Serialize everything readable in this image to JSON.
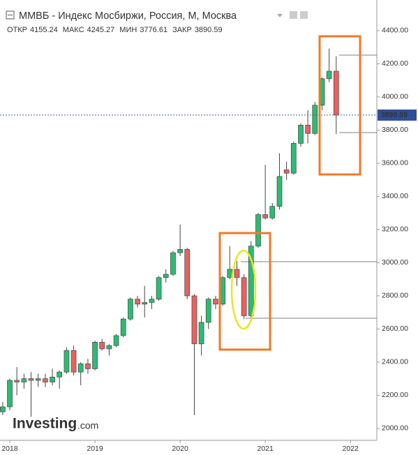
{
  "chart_data": {
    "type": "candlestick",
    "title": "ММВБ - Индекс Мосбиржи, Россия, М, Москва",
    "ohlc_labels": [
      "ОТКР",
      "МАКС",
      "МИН",
      "ЗАКР"
    ],
    "watermark": "Investing",
    "watermark_suffix": ".com",
    "up_color": "#2dbb74",
    "down_color": "#e8625f",
    "x": [
      2017.917,
      2018.0,
      2018.083,
      2018.167,
      2018.25,
      2018.333,
      2018.417,
      2018.5,
      2018.583,
      2018.667,
      2018.75,
      2018.833,
      2018.917,
      2019.0,
      2019.083,
      2019.167,
      2019.25,
      2019.333,
      2019.417,
      2019.5,
      2019.583,
      2019.667,
      2019.75,
      2019.833,
      2019.917,
      2020.0,
      2020.083,
      2020.167,
      2020.25,
      2020.333,
      2020.417,
      2020.5,
      2020.583,
      2020.667,
      2020.75,
      2020.833,
      2020.917,
      2021.0,
      2021.083,
      2021.167,
      2021.25,
      2021.333,
      2021.417,
      2021.5,
      2021.583,
      2021.667,
      2021.75,
      2021.833
    ],
    "open": [
      2100,
      2130,
      2290,
      2280,
      2300,
      2290,
      2300,
      2280,
      2310,
      2340,
      2470,
      2340,
      2390,
      2360,
      2520,
      2480,
      2500,
      2560,
      2660,
      2780,
      2750,
      2760,
      2780,
      2910,
      2930,
      3060,
      3080,
      2800,
      2510,
      2640,
      2780,
      2750,
      2910,
      2960,
      2910,
      2680,
      3100,
      3290,
      3270,
      3340,
      3560,
      3540,
      3720,
      3830,
      3780,
      3950,
      4110,
      4155.24
    ],
    "high": [
      2160,
      2300,
      2370,
      2330,
      2340,
      2330,
      2330,
      2360,
      2350,
      2490,
      2500,
      2400,
      2420,
      2530,
      2540,
      2510,
      2570,
      2670,
      2790,
      2800,
      2860,
      2800,
      2920,
      2960,
      3070,
      3230,
      3090,
      2810,
      2680,
      2790,
      2800,
      2920,
      3100,
      3010,
      2930,
      3130,
      3300,
      3590,
      3360,
      3660,
      3610,
      3730,
      3840,
      3920,
      3970,
      4120,
      4292,
      4245.27
    ],
    "low": [
      2080,
      2110,
      2200,
      2240,
      2070,
      2250,
      2250,
      2260,
      2240,
      2330,
      2320,
      2260,
      2330,
      2350,
      2470,
      2440,
      2490,
      2550,
      2650,
      2730,
      2670,
      2720,
      2770,
      2880,
      2920,
      3040,
      2780,
      2080,
      2440,
      2600,
      2720,
      2740,
      2900,
      2860,
      2660,
      2660,
      3090,
      3260,
      3260,
      3320,
      3500,
      3530,
      3700,
      3720,
      3770,
      3920,
      4090,
      3776.61
    ],
    "close": [
      2130,
      2290,
      2280,
      2300,
      2290,
      2300,
      2280,
      2310,
      2340,
      2470,
      2340,
      2390,
      2360,
      2520,
      2480,
      2500,
      2560,
      2660,
      2780,
      2750,
      2760,
      2780,
      2910,
      2930,
      3060,
      3080,
      2800,
      2510,
      2640,
      2780,
      2750,
      2910,
      2960,
      2910,
      2680,
      3100,
      3290,
      3270,
      3340,
      3520,
      3540,
      3720,
      3830,
      3780,
      3950,
      4110,
      4155.24,
      3890.59
    ],
    "xlim": [
      2017.885,
      2022.31
    ],
    "xticks": [
      2018,
      2019,
      2020,
      2021,
      2022
    ],
    "ylim": [
      1928,
      4585
    ],
    "yticks": [
      {
        "value": 2000,
        "label": "2000.00"
      },
      {
        "value": 2200,
        "label": "2200.00"
      },
      {
        "value": 2400,
        "label": "2400.00"
      },
      {
        "value": 2600,
        "label": "2600.00"
      },
      {
        "value": 2800,
        "label": "2800.00"
      },
      {
        "value": 3000,
        "label": "3000.00"
      },
      {
        "value": 3200,
        "label": "3200.00"
      },
      {
        "value": 3400,
        "label": "3400.00"
      },
      {
        "value": 3600,
        "label": "3600.00"
      },
      {
        "value": 3800,
        "label": "3800.00"
      },
      {
        "value": 4000,
        "label": "4000.00"
      },
      {
        "value": 4200,
        "label": "4200.00"
      },
      {
        "value": 4400,
        "label": "4400.00"
      }
    ]
  }
}
